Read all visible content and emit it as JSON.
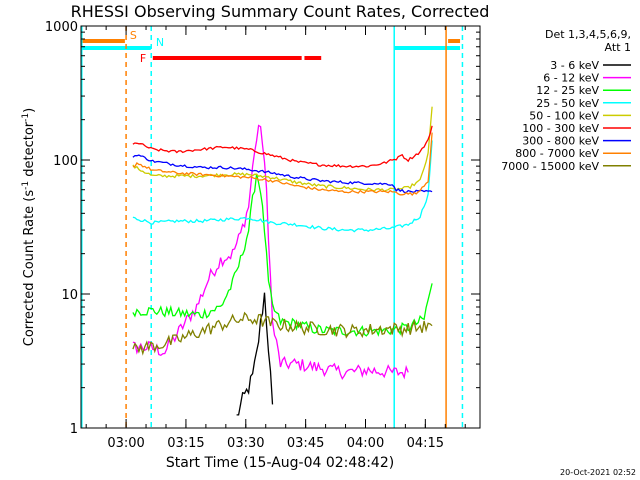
{
  "chart_data": {
    "type": "line",
    "title": "RHESSI Observing Summary Count Rates, Corrected",
    "xlabel": "Start Time (15-Aug-04 02:48:42)",
    "ylabel": "Corrected Count Rate (s",
    "ylabel_sup1": "-1",
    "ylabel_mid": " detector",
    "ylabel_sup2": "-1",
    "ylabel_end": ")",
    "y_scale": "log",
    "ylim": [
      1,
      1000
    ],
    "x_unit": "minutes after 02:48:42",
    "xlim": [
      0,
      100
    ],
    "x_ticks": [
      {
        "label": "03:00",
        "t": 11.3
      },
      {
        "label": "03:15",
        "t": 26.3
      },
      {
        "label": "03:30",
        "t": 41.3
      },
      {
        "label": "03:45",
        "t": 56.3
      },
      {
        "label": "04:00",
        "t": 71.3
      },
      {
        "label": "04:15",
        "t": 86.3
      }
    ],
    "y_ticks": [
      {
        "label": "1",
        "v": 1
      },
      {
        "label": "10",
        "v": 10
      },
      {
        "label": "100",
        "v": 100
      },
      {
        "label": "1000",
        "v": 1000
      }
    ],
    "legend": {
      "placement": "right",
      "header1": "Det 1,3,4,5,6,9,",
      "header2": "Att 1"
    },
    "series": [
      {
        "name": "3 - 6 keV",
        "color": "#000000",
        "t": [
          39,
          40.5,
          42,
          43,
          44,
          45,
          46,
          47,
          48
        ],
        "v": [
          1.2,
          1.6,
          2.0,
          2.4,
          3.5,
          6,
          10,
          4,
          1.5
        ]
      },
      {
        "name": "6 - 12 keV",
        "color": "#ff00ff",
        "t": [
          13,
          17,
          21,
          25,
          29,
          32,
          35,
          38,
          40,
          42,
          43.5,
          45,
          46.5,
          48,
          50,
          54,
          60,
          66,
          72,
          78,
          82
        ],
        "v": [
          4,
          4,
          3.7,
          5.5,
          8,
          13,
          18,
          20,
          28,
          45,
          120,
          190,
          60,
          6,
          3,
          3,
          2.8,
          2.6,
          2.7,
          2.6,
          2.6
        ]
      },
      {
        "name": "12 - 25 keV",
        "color": "#00ff00",
        "t": [
          13,
          18,
          24,
          30,
          35,
          38,
          40,
          42,
          43,
          44,
          45,
          46,
          47,
          48,
          50,
          54,
          58,
          62,
          66,
          70,
          74,
          78,
          82,
          86,
          87,
          88
        ],
        "v": [
          7.5,
          7.5,
          7.2,
          7,
          8,
          12,
          18,
          30,
          50,
          80,
          60,
          30,
          12,
          8,
          6.2,
          6,
          5.5,
          5.3,
          5.3,
          5.3,
          5.3,
          5.4,
          5.6,
          6.5,
          9,
          12
        ]
      },
      {
        "name": "25 - 50 keV",
        "color": "#00ffff",
        "t": [
          13,
          18,
          24,
          30,
          36,
          42,
          48,
          54,
          60,
          66,
          72,
          78,
          82,
          85,
          87,
          88
        ],
        "v": [
          37,
          34,
          35,
          35,
          36,
          37,
          34,
          33,
          31,
          30,
          30,
          31,
          33,
          38,
          55,
          140
        ]
      },
      {
        "name": "50 - 100 keV",
        "color": "#cccc00",
        "t": [
          13,
          18,
          24,
          30,
          36,
          42,
          48,
          54,
          60,
          66,
          72,
          78,
          82,
          85,
          87,
          88
        ],
        "v": [
          90,
          76,
          76,
          76,
          78,
          78,
          74,
          68,
          64,
          62,
          60,
          60,
          62,
          70,
          110,
          250
        ]
      },
      {
        "name": "100 - 300 keV",
        "color": "#ff0000",
        "t": [
          13,
          14,
          18,
          24,
          30,
          36,
          42,
          48,
          54,
          60,
          66,
          72,
          76,
          79,
          80,
          82,
          85,
          87,
          88
        ],
        "v": [
          130,
          135,
          120,
          115,
          120,
          125,
          120,
          108,
          97,
          92,
          90,
          90,
          95,
          102,
          110,
          100,
          115,
          140,
          180
        ]
      },
      {
        "name": "300 - 800 keV",
        "color": "#0000ff",
        "t": [
          13,
          14,
          18,
          24,
          30,
          36,
          42,
          48,
          54,
          60,
          66,
          72,
          78,
          79,
          82,
          88
        ],
        "v": [
          105,
          110,
          98,
          92,
          88,
          88,
          85,
          80,
          74,
          70,
          68,
          67,
          66,
          60,
          58,
          58
        ]
      },
      {
        "name": "800 - 7000 keV",
        "color": "#ff8000",
        "t": [
          13,
          14,
          18,
          24,
          30,
          36,
          42,
          48,
          54,
          60,
          66,
          72,
          78,
          80,
          84,
          87,
          88
        ],
        "v": [
          88,
          95,
          84,
          80,
          78,
          76,
          74,
          70,
          64,
          60,
          58,
          58,
          58,
          56,
          56,
          70,
          160
        ]
      },
      {
        "name": "7000 - 15000 keV",
        "color": "#808000",
        "t": [
          13,
          16,
          20,
          24,
          28,
          32,
          36,
          40,
          44,
          48,
          52,
          56,
          60,
          64,
          68,
          72,
          76,
          80,
          84,
          88
        ],
        "v": [
          3.8,
          4.0,
          4.2,
          4.5,
          5.0,
          5.5,
          6.0,
          6.5,
          6.5,
          6.0,
          5.8,
          5.6,
          5.5,
          5.4,
          5.3,
          5.4,
          5.5,
          5.5,
          5.6,
          5.8
        ]
      }
    ],
    "flag_bars": [
      {
        "label": "S",
        "color": "#ff8000",
        "segments": [
          [
            0,
            11
          ],
          [
            92,
            95
          ]
        ]
      },
      {
        "label": "N",
        "color": "#00ffff",
        "segments": [
          [
            0,
            17.5
          ],
          [
            78.5,
            95
          ]
        ]
      },
      {
        "label": "F",
        "color": "#ff0000",
        "segments": [
          [
            18,
            55.3
          ],
          [
            56,
            60.2
          ]
        ]
      }
    ],
    "vlines": [
      {
        "t": 0.2,
        "color": "#00ffff",
        "style": "solid"
      },
      {
        "t": 11.3,
        "color": "#ff8000",
        "style": "dashed"
      },
      {
        "t": 17.6,
        "color": "#00ffff",
        "style": "dashed"
      },
      {
        "t": 78.5,
        "color": "#00ffff",
        "style": "solid"
      },
      {
        "t": 91.5,
        "color": "#ff8000",
        "style": "solid"
      },
      {
        "t": 95.6,
        "color": "#00ffff",
        "style": "dashed"
      }
    ]
  },
  "footer": {
    "timestamp": "20-Oct-2021 02:52"
  }
}
